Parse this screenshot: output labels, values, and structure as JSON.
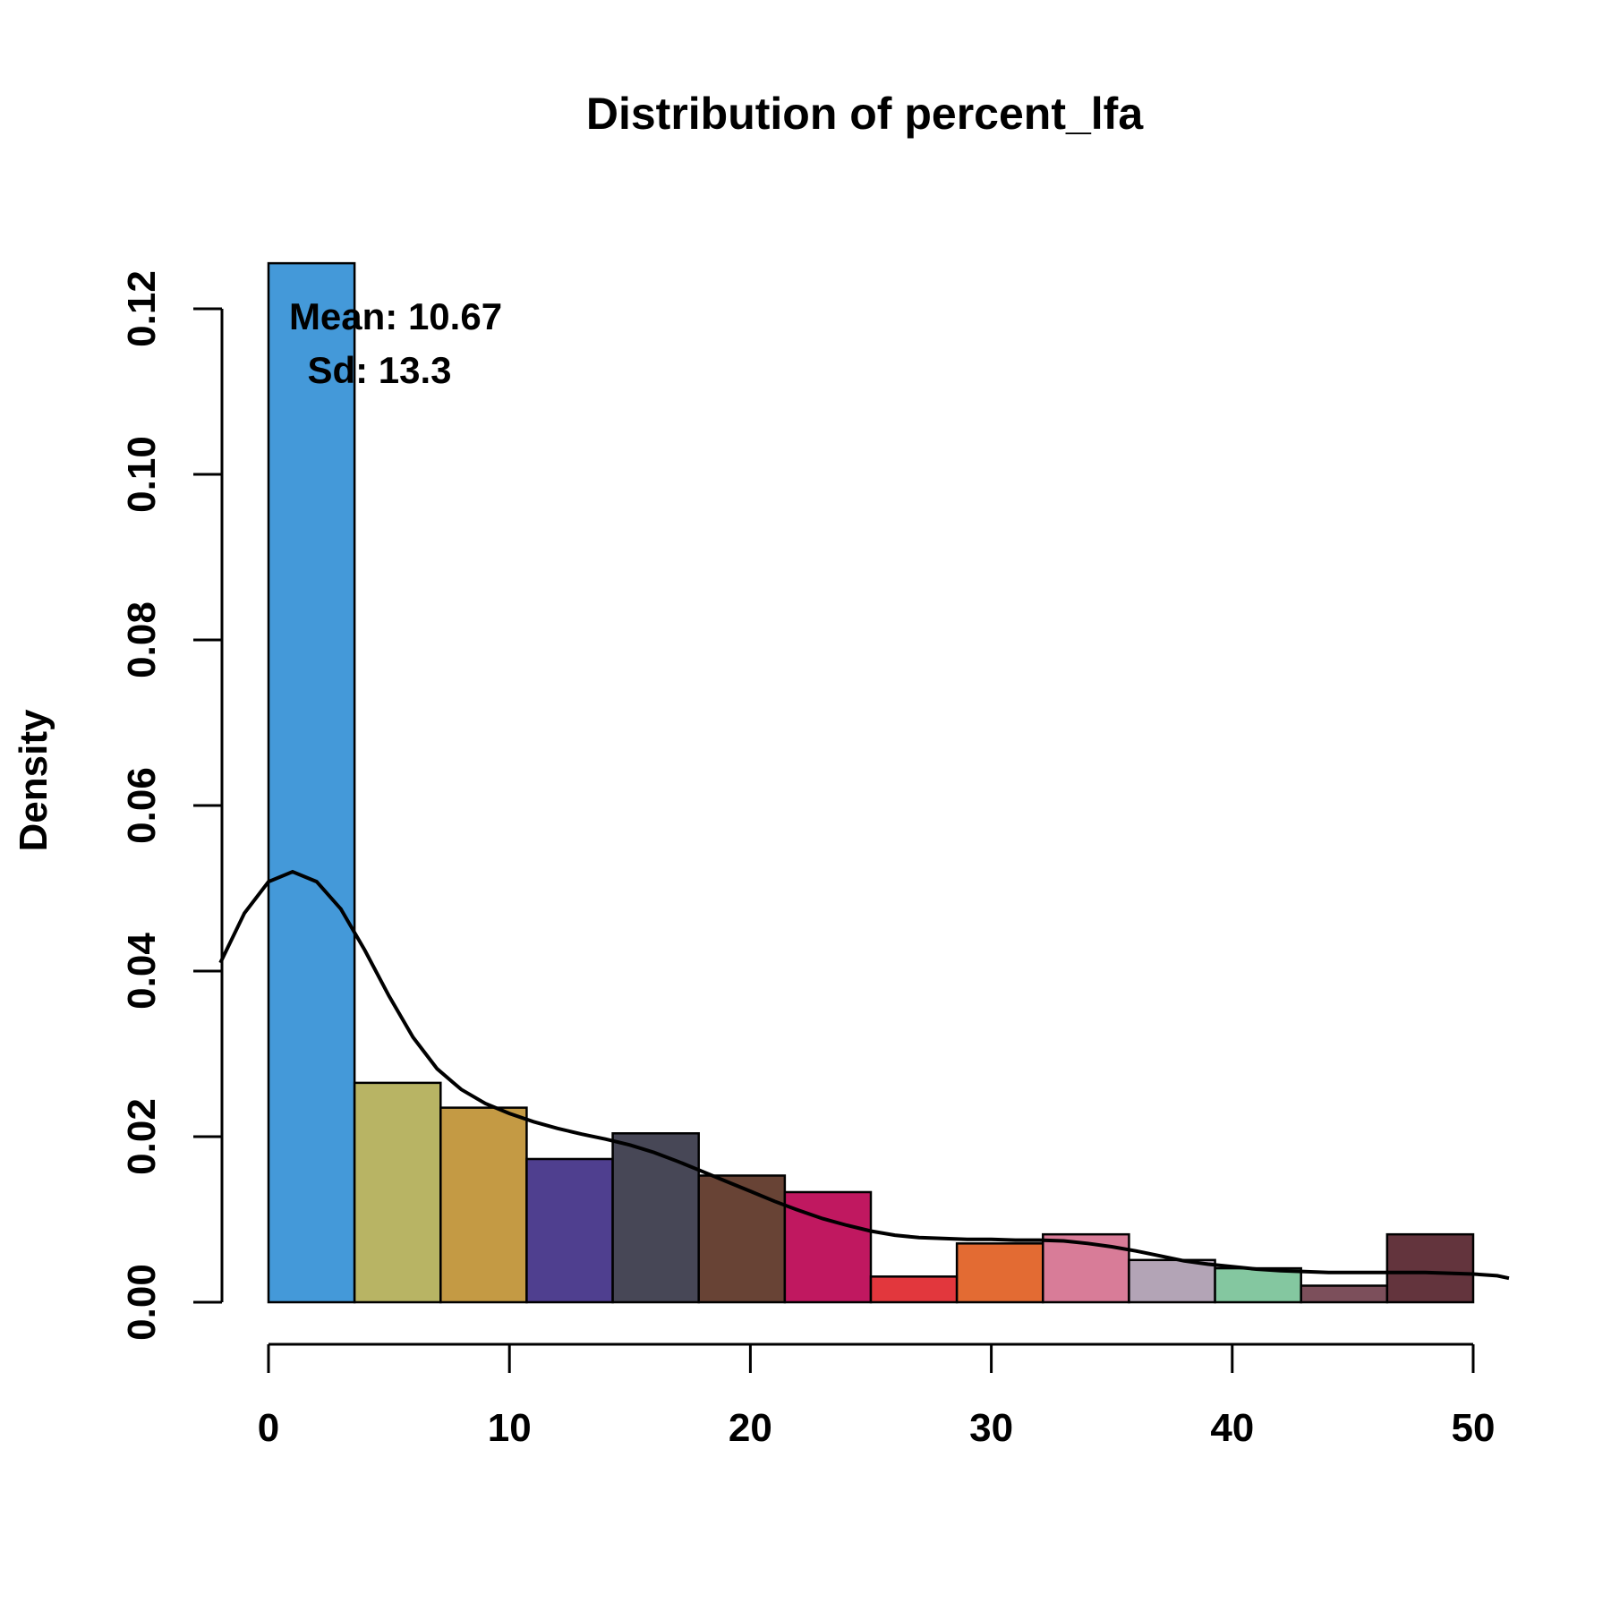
{
  "chart_data": {
    "type": "bar",
    "title": "Distribution of percent_lfa",
    "xlabel": "",
    "ylabel": "Density",
    "xlim": [
      -2,
      52
    ],
    "ylim": [
      0,
      0.126
    ],
    "x_ticks": [
      0,
      10,
      20,
      30,
      40,
      50
    ],
    "y_ticks": [
      0.0,
      0.02,
      0.04,
      0.06,
      0.08,
      0.1,
      0.12
    ],
    "x_tick_labels": [
      "0",
      "10",
      "20",
      "30",
      "40",
      "50"
    ],
    "y_tick_labels": [
      "0.00",
      "0.02",
      "0.04",
      "0.06",
      "0.08",
      "0.10",
      "0.12"
    ],
    "bin_edges": [
      0,
      3.571,
      7.143,
      10.714,
      14.286,
      17.857,
      21.429,
      25.0,
      28.571,
      32.143,
      35.714,
      39.286,
      42.857,
      46.429,
      50.0
    ],
    "values": [
      0.1255,
      0.0265,
      0.0235,
      0.0173,
      0.0204,
      0.0153,
      0.0133,
      0.0031,
      0.0071,
      0.0082,
      0.0051,
      0.0041,
      0.002,
      0.0082
    ],
    "colors": [
      "#4499d9",
      "#b8b464",
      "#c49a44",
      "#4f3f8f",
      "#474756",
      "#684335",
      "#c01860",
      "#e2373d",
      "#e36b33",
      "#d87c98",
      "#b3a4b6",
      "#84c7a0",
      "#7c4f5b",
      "#63343d"
    ],
    "density_curve": {
      "x": [
        -2,
        -1,
        0,
        1,
        2,
        3,
        4,
        5,
        6,
        7,
        8,
        9,
        10,
        11,
        12,
        13,
        14,
        15,
        16,
        17,
        18,
        19,
        20,
        21,
        22,
        23,
        24,
        25,
        26,
        27,
        28,
        29,
        30,
        31,
        32,
        33,
        34,
        35,
        36,
        37,
        38,
        39,
        40,
        41,
        42,
        43,
        44,
        45,
        46,
        47,
        48,
        49,
        50,
        51,
        52
      ],
      "y": [
        0.041,
        0.047,
        0.0508,
        0.052,
        0.0508,
        0.0475,
        0.0425,
        0.037,
        0.032,
        0.0282,
        0.0257,
        0.024,
        0.0228,
        0.0218,
        0.021,
        0.0203,
        0.0197,
        0.019,
        0.0181,
        0.017,
        0.0158,
        0.0146,
        0.0134,
        0.0122,
        0.0111,
        0.0101,
        0.0093,
        0.0086,
        0.0081,
        0.0078,
        0.0077,
        0.0076,
        0.0076,
        0.0075,
        0.0075,
        0.0074,
        0.0071,
        0.0067,
        0.0062,
        0.0056,
        0.005,
        0.0046,
        0.0043,
        0.004,
        0.0038,
        0.0037,
        0.0036,
        0.0036,
        0.0036,
        0.0036,
        0.0036,
        0.0035,
        0.0034,
        0.0032,
        0.0029
      ]
    },
    "annotations": {
      "mean": "Mean: 10.67",
      "sd": "Sd: 13.3"
    },
    "grid": false,
    "legend": "none"
  }
}
